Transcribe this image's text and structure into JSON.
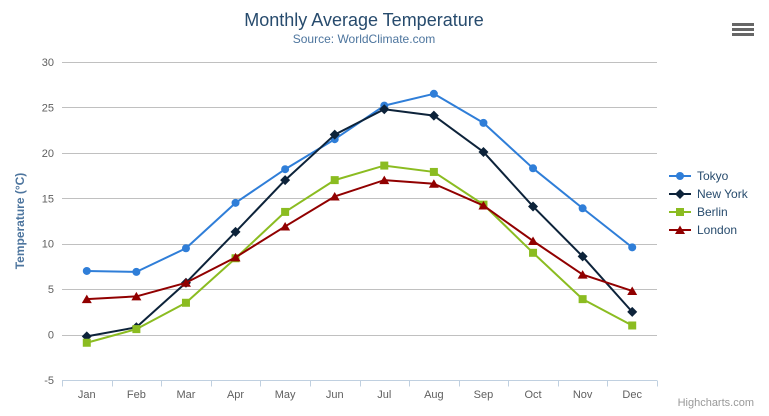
{
  "chart_data": {
    "type": "line",
    "title": "Monthly Average Temperature",
    "subtitle": "Source: WorldClimate.com",
    "xlabel": "",
    "ylabel": "Temperature (°C)",
    "categories": [
      "Jan",
      "Feb",
      "Mar",
      "Apr",
      "May",
      "Jun",
      "Jul",
      "Aug",
      "Sep",
      "Oct",
      "Nov",
      "Dec"
    ],
    "series": [
      {
        "name": "Tokyo",
        "color": "#2f7ed8",
        "marker": "circle",
        "values": [
          7.0,
          6.9,
          9.5,
          14.5,
          18.2,
          21.5,
          25.2,
          26.5,
          23.3,
          18.3,
          13.9,
          9.6
        ]
      },
      {
        "name": "New York",
        "color": "#0d233a",
        "marker": "diamond",
        "values": [
          -0.2,
          0.8,
          5.7,
          11.3,
          17.0,
          22.0,
          24.8,
          24.1,
          20.1,
          14.1,
          8.6,
          2.5
        ]
      },
      {
        "name": "Berlin",
        "color": "#8bbc21",
        "marker": "square",
        "values": [
          -0.9,
          0.6,
          3.5,
          8.4,
          13.5,
          17.0,
          18.6,
          17.9,
          14.3,
          9.0,
          3.9,
          1.0
        ]
      },
      {
        "name": "London",
        "color": "#910000",
        "marker": "triangle",
        "values": [
          3.9,
          4.2,
          5.7,
          8.5,
          11.9,
          15.2,
          17.0,
          16.6,
          14.2,
          10.3,
          6.6,
          4.8
        ]
      }
    ],
    "ylim": [
      -5,
      30
    ],
    "ytick_step": 5,
    "grid": true,
    "legend_position": "right"
  },
  "colors": {
    "title": "#274b6d",
    "subtitle": "#4d759e",
    "axis_title": "#4d759e",
    "tick_label": "#606060",
    "grid_line": "#c0c0c0",
    "axis_line": "#c0d0e0",
    "legend_text": "#274b6d",
    "credits_text": "#999999",
    "menu_icon": "#666666"
  },
  "credits": {
    "label": "Highcharts.com"
  },
  "export_menu": {
    "icon": "hamburger-icon"
  }
}
